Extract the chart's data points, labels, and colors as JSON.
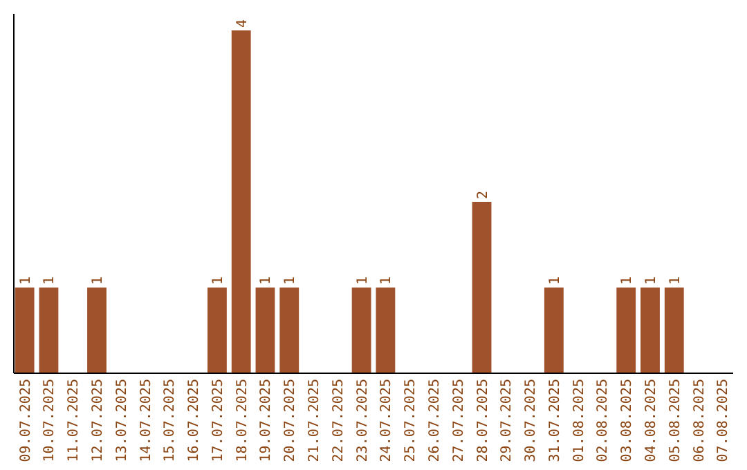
{
  "chart_data": {
    "type": "bar",
    "categories": [
      "09.07.2025",
      "10.07.2025",
      "11.07.2025",
      "12.07.2025",
      "13.07.2025",
      "14.07.2025",
      "15.07.2025",
      "16.07.2025",
      "17.07.2025",
      "18.07.2025",
      "19.07.2025",
      "20.07.2025",
      "21.07.2025",
      "22.07.2025",
      "23.07.2025",
      "24.07.2025",
      "25.07.2025",
      "26.07.2025",
      "27.07.2025",
      "28.07.2025",
      "29.07.2025",
      "30.07.2025",
      "31.07.2025",
      "01.08.2025",
      "02.08.2025",
      "03.08.2025",
      "04.08.2025",
      "05.08.2025",
      "06.08.2025",
      "07.08.2025"
    ],
    "values": [
      1,
      1,
      0,
      1,
      0,
      0,
      0,
      0,
      1,
      4,
      1,
      1,
      0,
      0,
      1,
      1,
      0,
      0,
      0,
      2,
      0,
      0,
      1,
      0,
      0,
      1,
      1,
      1,
      0,
      0
    ],
    "value_labels": [
      "1",
      "1",
      null,
      "1",
      null,
      null,
      null,
      null,
      "1",
      "4",
      "1",
      "1",
      null,
      null,
      "1",
      "1",
      null,
      null,
      null,
      "2",
      null,
      null,
      "1",
      null,
      null,
      "1",
      "1",
      "1",
      null,
      null
    ],
    "color": "#a0522d",
    "tick_labels": "x",
    "grid": false
  }
}
